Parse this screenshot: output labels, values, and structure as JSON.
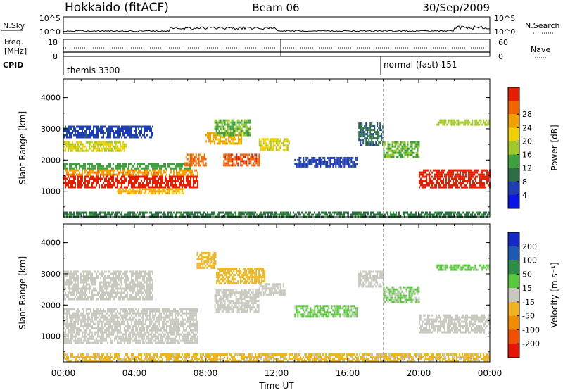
{
  "header": {
    "station": "Hokkaido (fitACF)",
    "beam": "Beam 06",
    "date": "30/Sep/2009"
  },
  "strip": {
    "nsky_label": "N.Sky",
    "nsky_ticks": [
      "10^5",
      "10^0"
    ],
    "nsearch_label": "N.Search",
    "freq_label_1": "Freq.",
    "freq_label_2": "[MHz]",
    "freq_ticks": [
      "18",
      "8"
    ],
    "nave_ticks": [
      "60",
      "0"
    ],
    "nave_label": "Nave",
    "cpid_label": "CPID",
    "cpid_1": "themis 3300",
    "cpid_2": "normal (fast) 151"
  },
  "colors": {
    "power": [
      "#0a14e6",
      "#1e3cb4",
      "#2d6e46",
      "#3ca03c",
      "#a0c828",
      "#f0d000",
      "#f0a000",
      "#f06400",
      "#e61e00"
    ],
    "velocity": [
      "#1428c8",
      "#1e5ab4",
      "#2d8c46",
      "#5ac83c",
      "#c8c8be",
      "#f0b41e",
      "#f08c00",
      "#f05000",
      "#e61400"
    ]
  },
  "chart_data": [
    {
      "type": "heatmap",
      "title": "",
      "xlabel": "Time UT",
      "ylabel": "Slant Range [km]",
      "xticks": [
        "00:00",
        "04:00",
        "08:00",
        "12:00",
        "16:00",
        "20:00",
        "00:00"
      ],
      "yticks": [
        "1000",
        "2000",
        "3000",
        "4000"
      ],
      "xlim": [
        0,
        24
      ],
      "ylim": [
        180,
        4600
      ],
      "colorbar_label": "Power [dB]",
      "colorbar_ticks": [
        "4",
        "8",
        "12",
        "16",
        "20",
        "24",
        "28"
      ],
      "colorbar_range": [
        0,
        32
      ],
      "regions": [
        {
          "x": [
            0,
            7.6
          ],
          "y": [
            1100,
            1500
          ],
          "level": 30
        },
        {
          "x": [
            0,
            7.6
          ],
          "y": [
            1500,
            1700
          ],
          "level": 24
        },
        {
          "x": [
            0,
            7.2
          ],
          "y": [
            1700,
            1900
          ],
          "level": 12
        },
        {
          "x": [
            0,
            3.5
          ],
          "y": [
            2300,
            2600
          ],
          "level": 18
        },
        {
          "x": [
            0,
            5.0
          ],
          "y": [
            2700,
            3100
          ],
          "level": 6
        },
        {
          "x": [
            3.0,
            6.8
          ],
          "y": [
            900,
            1100
          ],
          "level": 22
        },
        {
          "x": [
            6.8,
            8.0
          ],
          "y": [
            1800,
            2200
          ],
          "level": 26
        },
        {
          "x": [
            8.0,
            10.0
          ],
          "y": [
            2500,
            2900
          ],
          "level": 22
        },
        {
          "x": [
            8.5,
            10.5
          ],
          "y": [
            2800,
            3300
          ],
          "level": 14
        },
        {
          "x": [
            9.0,
            11.0
          ],
          "y": [
            1800,
            2200
          ],
          "level": 28
        },
        {
          "x": [
            11.0,
            12.7
          ],
          "y": [
            2300,
            2700
          ],
          "level": 18
        },
        {
          "x": [
            13.0,
            16.5
          ],
          "y": [
            1800,
            2100
          ],
          "level": 6
        },
        {
          "x": [
            16.6,
            18.0
          ],
          "y": [
            2500,
            3200
          ],
          "level": 8
        },
        {
          "x": [
            18.0,
            20.0
          ],
          "y": [
            2100,
            2600
          ],
          "level": 14
        },
        {
          "x": [
            20.0,
            24.0
          ],
          "y": [
            1100,
            1700
          ],
          "level": 30
        },
        {
          "x": [
            21.0,
            24.0
          ],
          "y": [
            3100,
            3300
          ],
          "level": 16
        },
        {
          "x": [
            0,
            24.0
          ],
          "y": [
            200,
            350
          ],
          "level": 10
        }
      ]
    },
    {
      "type": "heatmap",
      "title": "",
      "xlabel": "Time UT",
      "ylabel": "Slant Range [km]",
      "xticks": [
        "00:00",
        "04:00",
        "08:00",
        "12:00",
        "16:00",
        "20:00",
        "00:00"
      ],
      "yticks": [
        "1000",
        "2000",
        "3000",
        "4000"
      ],
      "xlim": [
        0,
        24
      ],
      "ylim": [
        180,
        4600
      ],
      "colorbar_label": "Velocity [m s⁻¹]",
      "colorbar_ticks": [
        "200",
        "100",
        "50",
        "15",
        "-15",
        "-50",
        "-100",
        "-200"
      ],
      "colorbar_range": [
        -250,
        250
      ],
      "regions": [
        {
          "x": [
            0,
            7.6
          ],
          "y": [
            800,
            1900
          ],
          "level": 0
        },
        {
          "x": [
            0,
            5.0
          ],
          "y": [
            2200,
            3100
          ],
          "level": 0
        },
        {
          "x": [
            7.5,
            8.6
          ],
          "y": [
            3200,
            3700
          ],
          "level": -60
        },
        {
          "x": [
            8.6,
            11.3
          ],
          "y": [
            2700,
            3200
          ],
          "level": -60
        },
        {
          "x": [
            8.5,
            11.0
          ],
          "y": [
            1800,
            2500
          ],
          "level": 0
        },
        {
          "x": [
            11.0,
            12.5
          ],
          "y": [
            2300,
            2700
          ],
          "level": 0
        },
        {
          "x": [
            13.0,
            16.5
          ],
          "y": [
            1600,
            2000
          ],
          "level": 40
        },
        {
          "x": [
            16.6,
            18.0
          ],
          "y": [
            2600,
            3100
          ],
          "level": 0
        },
        {
          "x": [
            18.0,
            20.0
          ],
          "y": [
            2100,
            2600
          ],
          "level": 30
        },
        {
          "x": [
            20.0,
            24.0
          ],
          "y": [
            1100,
            1700
          ],
          "level": 0
        },
        {
          "x": [
            21.0,
            24.0
          ],
          "y": [
            3100,
            3300
          ],
          "level": 40
        },
        {
          "x": [
            0,
            24.0
          ],
          "y": [
            200,
            450
          ],
          "level": -40
        }
      ]
    }
  ]
}
